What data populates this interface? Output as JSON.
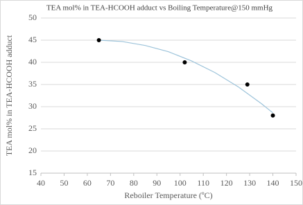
{
  "chart_data": {
    "type": "scatter",
    "title": "TEA mol% in TEA-HCOOH adduct vs Boiling  Temperature@150 mmHg",
    "x_label": "Reboiler Temperature (ºC)",
    "y_label": "TEA mol% in TEA-HCOOH adduct",
    "x": [
      65,
      102,
      129,
      140
    ],
    "values": [
      45,
      40,
      35,
      28
    ],
    "color": "#000000",
    "trendline": {
      "color": "#9cc3da",
      "x": [
        65,
        75,
        85,
        95,
        105,
        115,
        125,
        135,
        140
      ],
      "values": [
        45,
        44.7,
        43.8,
        42.4,
        40.3,
        37.7,
        34.5,
        30.7,
        28.6
      ]
    },
    "xlim": [
      40,
      150
    ],
    "xticks": [
      40,
      50,
      60,
      70,
      80,
      90,
      100,
      110,
      120,
      130,
      140,
      150
    ],
    "ylim": [
      15,
      50
    ],
    "yticks": [
      15,
      20,
      25,
      30,
      35,
      40,
      45,
      50
    ],
    "grid": true
  }
}
